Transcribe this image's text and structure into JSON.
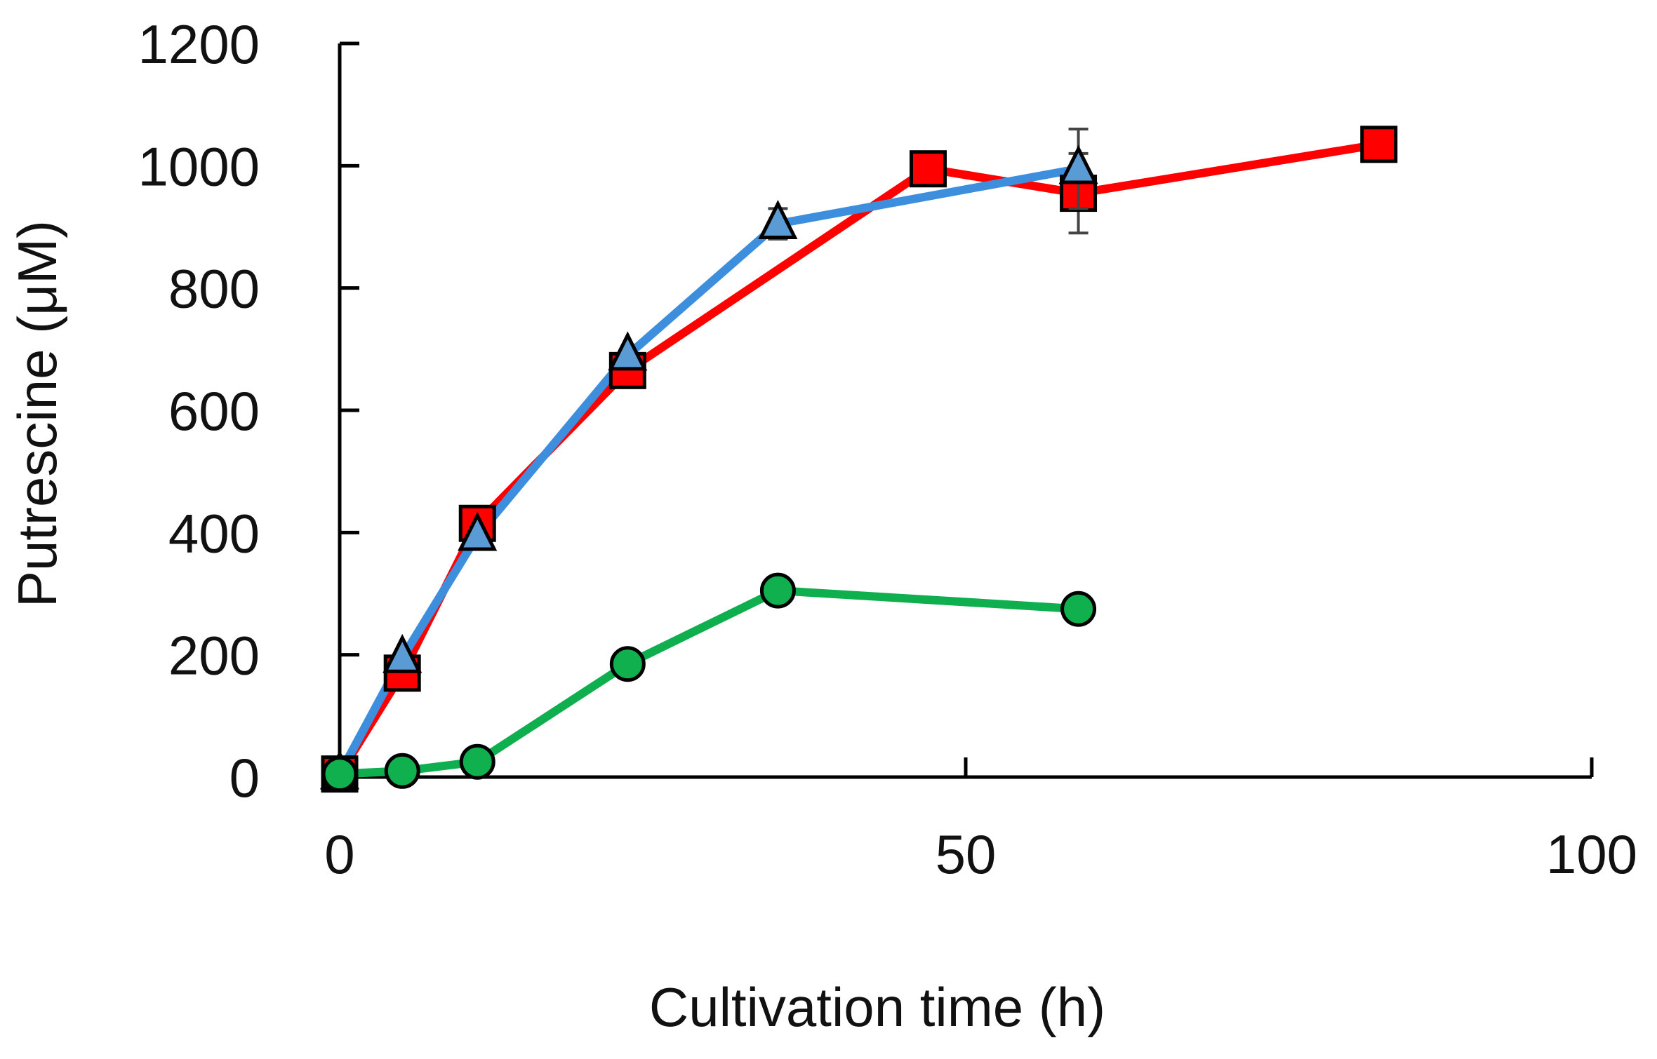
{
  "chart_data": {
    "type": "line",
    "title": "",
    "xlabel": "Cultivation time (h)",
    "ylabel": "Putrescine (μM)",
    "xlim": [
      0,
      100
    ],
    "ylim": [
      0,
      1200
    ],
    "xticks": [
      0,
      50,
      100
    ],
    "yticks": [
      0,
      200,
      400,
      600,
      800,
      1000,
      1200
    ],
    "grid": false,
    "legend": "none",
    "series": [
      {
        "name": "red-squares",
        "color": "#ff0000",
        "marker": "square",
        "marker_color": "#ff0000",
        "x": [
          0,
          5,
          11,
          23,
          47,
          59,
          83
        ],
        "y": [
          5,
          170,
          415,
          665,
          995,
          955,
          1035
        ],
        "err": [
          0,
          0,
          0,
          0,
          0,
          65,
          0
        ]
      },
      {
        "name": "blue-triangles",
        "color": "#3d8fde",
        "marker": "triangle",
        "marker_color": "#5b9bd5",
        "x": [
          0,
          5,
          11,
          23,
          35,
          59
        ],
        "y": [
          5,
          195,
          395,
          690,
          905,
          995
        ],
        "err": [
          0,
          0,
          0,
          0,
          25,
          65
        ]
      },
      {
        "name": "green-circles",
        "color": "#0fae4f",
        "marker": "circle",
        "marker_color": "#11b04f",
        "x": [
          0,
          5,
          11,
          23,
          35,
          59
        ],
        "y": [
          5,
          10,
          25,
          185,
          305,
          275
        ],
        "err": [
          0,
          0,
          0,
          0,
          0,
          0
        ]
      }
    ]
  }
}
